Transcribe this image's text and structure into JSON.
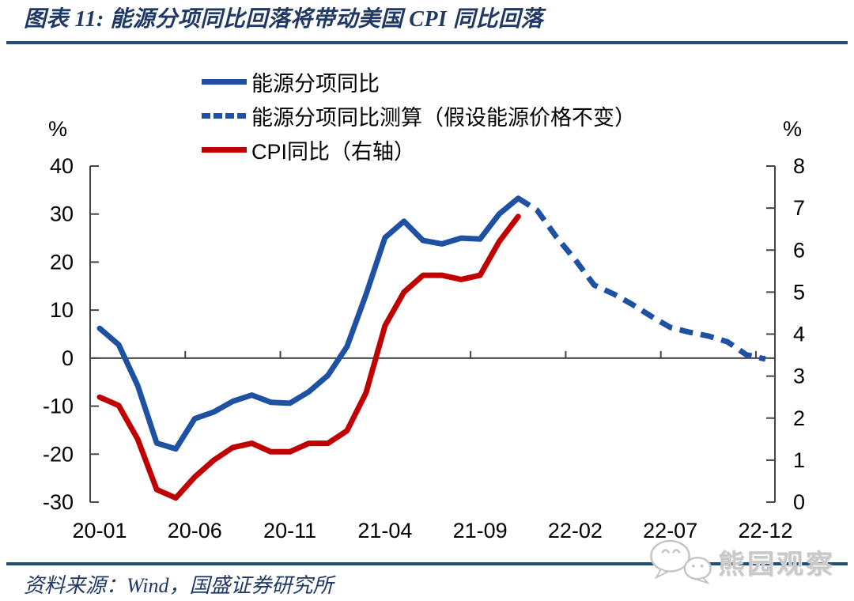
{
  "chart_data": {
    "type": "line",
    "title": "图表 11: 能源分项同比回落将带动美国 CPI 同比回落",
    "x_categories": [
      "20-01",
      "20-02",
      "20-03",
      "20-04",
      "20-05",
      "20-06",
      "20-07",
      "20-08",
      "20-09",
      "20-10",
      "20-11",
      "20-12",
      "21-01",
      "21-02",
      "21-03",
      "21-04",
      "21-05",
      "21-06",
      "21-07",
      "21-08",
      "21-09",
      "21-10",
      "21-11",
      "21-12",
      "22-01",
      "22-02",
      "22-03",
      "22-04",
      "22-05",
      "22-06",
      "22-07",
      "22-08",
      "22-09",
      "22-10",
      "22-11",
      "22-12"
    ],
    "x_tick_indices": [
      0,
      5,
      10,
      15,
      20,
      25,
      30,
      35
    ],
    "x_tick_labels": [
      "20-01",
      "20-06",
      "20-11",
      "21-04",
      "21-09",
      "22-02",
      "22-07",
      "22-12"
    ],
    "left_axis": {
      "unit": "%",
      "min": -30,
      "max": 40,
      "ticks": [
        40,
        30,
        20,
        10,
        0,
        -10,
        -20,
        -30
      ]
    },
    "right_axis": {
      "unit": "%",
      "min": 0,
      "max": 8,
      "ticks": [
        8,
        7,
        6,
        5,
        4,
        3,
        2,
        1,
        0
      ]
    },
    "grid": "off",
    "legend_position": "top-center",
    "series": [
      {
        "name": "能源分项同比",
        "axis": "left",
        "style": "solid",
        "color": "#1e51a2",
        "start_index": 0,
        "values": [
          6.2,
          2.8,
          -5.7,
          -17.7,
          -18.9,
          -12.6,
          -11.2,
          -9.0,
          -7.7,
          -9.2,
          -9.4,
          -7.0,
          -3.6,
          2.4,
          13.2,
          25.1,
          28.5,
          24.5,
          23.8,
          25.0,
          24.8,
          30.0,
          33.3
        ]
      },
      {
        "name": "能源分项同比测算（假设能源价格不变）",
        "axis": "left",
        "style": "dashed",
        "color": "#1e51a2",
        "start_index": 22,
        "values": [
          33.3,
          30.8,
          25.3,
          20.5,
          15.2,
          13.4,
          11.2,
          8.7,
          6.4,
          5.4,
          4.6,
          3.4,
          0.7,
          -0.2
        ]
      },
      {
        "name": "CPI同比（右轴）",
        "axis": "right",
        "style": "solid",
        "color": "#c00000",
        "start_index": 0,
        "values": [
          2.5,
          2.3,
          1.5,
          0.3,
          0.1,
          0.6,
          1.0,
          1.3,
          1.4,
          1.2,
          1.2,
          1.4,
          1.4,
          1.7,
          2.6,
          4.2,
          5.0,
          5.4,
          5.4,
          5.3,
          5.4,
          6.2,
          6.8
        ]
      }
    ]
  },
  "footer": {
    "source": "资料来源：Wind，国盛证券研究所",
    "watermark": "熊园观察"
  },
  "colors": {
    "title_navy": "#1f3864",
    "rule_blue": "#1f4e79",
    "axis_gray": "#454545",
    "line_blue": "#1e51a2",
    "line_red": "#c00000",
    "watermark_gray": "#c9c9c9"
  }
}
